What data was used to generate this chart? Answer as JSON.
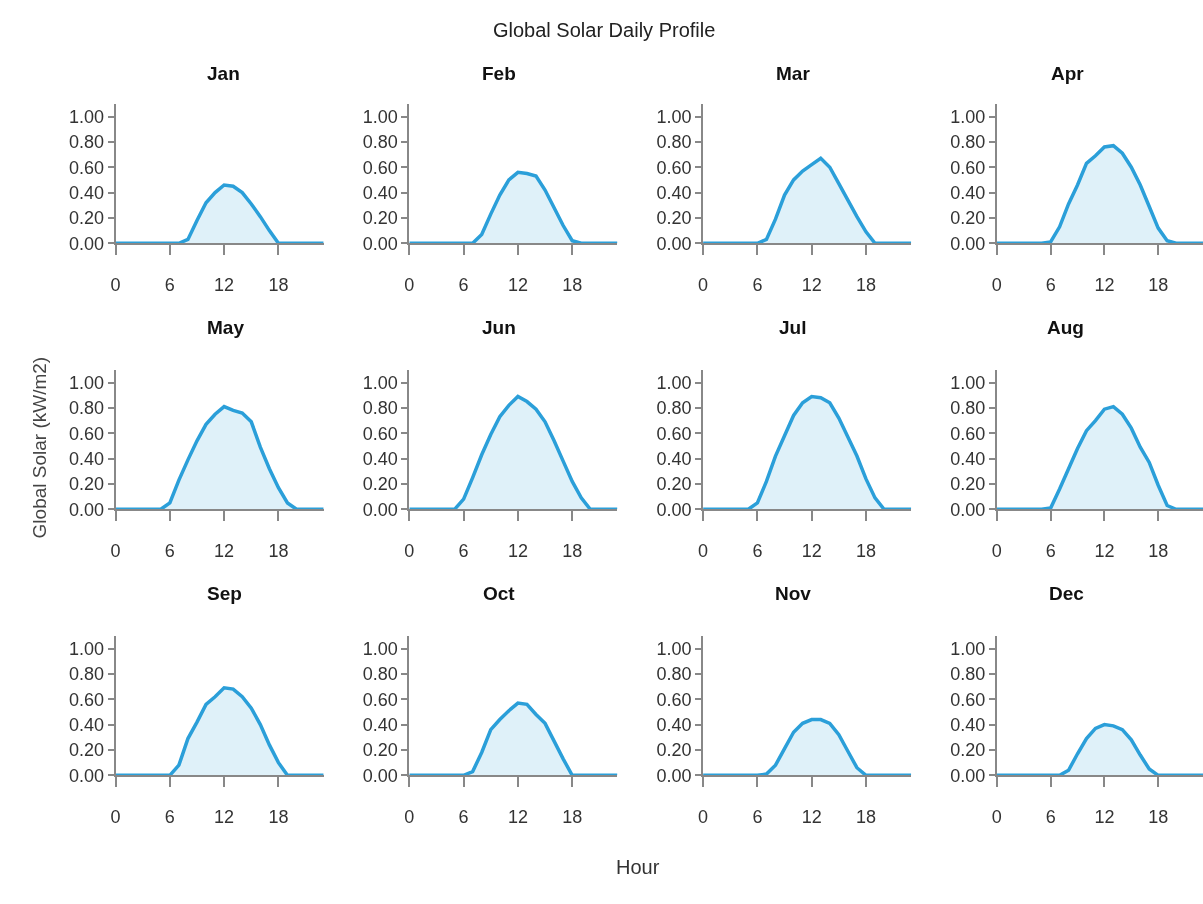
{
  "chart_data": [
    {
      "type": "area",
      "title": "Jan",
      "annotations": [
        "Global Solar Daily Profile"
      ],
      "x": [
        0,
        1,
        2,
        3,
        4,
        5,
        6,
        7,
        8,
        9,
        10,
        11,
        12,
        13,
        14,
        15,
        16,
        17,
        18,
        19,
        20,
        21,
        22,
        23
      ],
      "series": [
        {
          "color": "#2b9fd9",
          "values": [
            0,
            0,
            0,
            0,
            0,
            0,
            0,
            0,
            0.03,
            0.18,
            0.32,
            0.4,
            0.46,
            0.45,
            0.4,
            0.31,
            0.21,
            0.1,
            0,
            0,
            0,
            0,
            0,
            0
          ]
        }
      ],
      "xlim": [
        0,
        23
      ],
      "ylim": [
        0,
        1.1
      ],
      "xticks": [
        0,
        6,
        12,
        18
      ],
      "yticks": [
        {
          "value": 0,
          "label": "0.00"
        },
        {
          "value": 0.2,
          "label": "0.20"
        },
        {
          "value": 0.4,
          "label": "0.40"
        },
        {
          "value": 0.6,
          "label": "0.60"
        },
        {
          "value": 0.8,
          "label": "0.80"
        },
        {
          "value": 1,
          "label": "1.00"
        }
      ]
    },
    {
      "type": "area",
      "title": "Feb",
      "x": [
        0,
        1,
        2,
        3,
        4,
        5,
        6,
        7,
        8,
        9,
        10,
        11,
        12,
        13,
        14,
        15,
        16,
        17,
        18,
        19,
        20,
        21,
        22,
        23
      ],
      "series": [
        {
          "color": "#2b9fd9",
          "values": [
            0,
            0,
            0,
            0,
            0,
            0,
            0,
            0,
            0.07,
            0.23,
            0.38,
            0.5,
            0.56,
            0.55,
            0.53,
            0.42,
            0.28,
            0.14,
            0.02,
            0,
            0,
            0,
            0,
            0
          ]
        }
      ],
      "xlim": [
        0,
        23
      ],
      "ylim": [
        0,
        1.1
      ],
      "xticks": [
        0,
        6,
        12,
        18
      ],
      "yticks": [
        {
          "value": 0,
          "label": "0.00"
        },
        {
          "value": 0.2,
          "label": "0.20"
        },
        {
          "value": 0.4,
          "label": "0.40"
        },
        {
          "value": 0.6,
          "label": "0.60"
        },
        {
          "value": 0.8,
          "label": "0.80"
        },
        {
          "value": 1,
          "label": "1.00"
        }
      ]
    },
    {
      "type": "area",
      "title": "Mar",
      "x": [
        0,
        1,
        2,
        3,
        4,
        5,
        6,
        7,
        8,
        9,
        10,
        11,
        12,
        13,
        14,
        15,
        16,
        17,
        18,
        19,
        20,
        21,
        22,
        23
      ],
      "series": [
        {
          "color": "#2b9fd9",
          "values": [
            0,
            0,
            0,
            0,
            0,
            0,
            0,
            0.03,
            0.19,
            0.38,
            0.5,
            0.57,
            0.62,
            0.67,
            0.6,
            0.47,
            0.34,
            0.21,
            0.09,
            0,
            0,
            0,
            0,
            0
          ]
        }
      ],
      "xlim": [
        0,
        23
      ],
      "ylim": [
        0,
        1.1
      ],
      "xticks": [
        0,
        6,
        12,
        18
      ],
      "yticks": [
        {
          "value": 0,
          "label": "0.00"
        },
        {
          "value": 0.2,
          "label": "0.20"
        },
        {
          "value": 0.4,
          "label": "0.40"
        },
        {
          "value": 0.6,
          "label": "0.60"
        },
        {
          "value": 0.8,
          "label": "0.80"
        },
        {
          "value": 1,
          "label": "1.00"
        }
      ]
    },
    {
      "type": "area",
      "title": "Apr",
      "x": [
        0,
        1,
        2,
        3,
        4,
        5,
        6,
        7,
        8,
        9,
        10,
        11,
        12,
        13,
        14,
        15,
        16,
        17,
        18,
        19,
        20,
        21,
        22,
        23
      ],
      "series": [
        {
          "color": "#2b9fd9",
          "values": [
            0,
            0,
            0,
            0,
            0,
            0,
            0.01,
            0.13,
            0.31,
            0.46,
            0.63,
            0.69,
            0.76,
            0.77,
            0.71,
            0.6,
            0.46,
            0.29,
            0.12,
            0.02,
            0,
            0,
            0,
            0
          ]
        }
      ],
      "xlim": [
        0,
        23
      ],
      "ylim": [
        0,
        1.1
      ],
      "xticks": [
        0,
        6,
        12,
        18
      ],
      "yticks": [
        {
          "value": 0,
          "label": "0.00"
        },
        {
          "value": 0.2,
          "label": "0.20"
        },
        {
          "value": 0.4,
          "label": "0.40"
        },
        {
          "value": 0.6,
          "label": "0.60"
        },
        {
          "value": 0.8,
          "label": "0.80"
        },
        {
          "value": 1,
          "label": "1.00"
        }
      ]
    },
    {
      "type": "area",
      "title": "May",
      "ylabel": "Global Solar (kW/m2)",
      "x": [
        0,
        1,
        2,
        3,
        4,
        5,
        6,
        7,
        8,
        9,
        10,
        11,
        12,
        13,
        14,
        15,
        16,
        17,
        18,
        19,
        20,
        21,
        22,
        23
      ],
      "series": [
        {
          "color": "#2b9fd9",
          "values": [
            0,
            0,
            0,
            0,
            0,
            0,
            0.05,
            0.23,
            0.39,
            0.54,
            0.67,
            0.75,
            0.81,
            0.78,
            0.76,
            0.69,
            0.49,
            0.32,
            0.17,
            0.05,
            0,
            0,
            0,
            0
          ]
        }
      ],
      "xlim": [
        0,
        23
      ],
      "ylim": [
        0,
        1.1
      ],
      "xticks": [
        0,
        6,
        12,
        18
      ],
      "yticks": [
        {
          "value": 0,
          "label": "0.00"
        },
        {
          "value": 0.2,
          "label": "0.20"
        },
        {
          "value": 0.4,
          "label": "0.40"
        },
        {
          "value": 0.6,
          "label": "0.60"
        },
        {
          "value": 0.8,
          "label": "0.80"
        },
        {
          "value": 1,
          "label": "1.00"
        }
      ]
    },
    {
      "type": "area",
      "title": "Jun",
      "x": [
        0,
        1,
        2,
        3,
        4,
        5,
        6,
        7,
        8,
        9,
        10,
        11,
        12,
        13,
        14,
        15,
        16,
        17,
        18,
        19,
        20,
        21,
        22,
        23
      ],
      "series": [
        {
          "color": "#2b9fd9",
          "values": [
            0,
            0,
            0,
            0,
            0,
            0,
            0.08,
            0.25,
            0.43,
            0.59,
            0.73,
            0.82,
            0.89,
            0.85,
            0.79,
            0.69,
            0.54,
            0.38,
            0.22,
            0.09,
            0,
            0,
            0,
            0
          ]
        }
      ],
      "xlim": [
        0,
        23
      ],
      "ylim": [
        0,
        1.1
      ],
      "xticks": [
        0,
        6,
        12,
        18
      ],
      "yticks": [
        {
          "value": 0,
          "label": "0.00"
        },
        {
          "value": 0.2,
          "label": "0.20"
        },
        {
          "value": 0.4,
          "label": "0.40"
        },
        {
          "value": 0.6,
          "label": "0.60"
        },
        {
          "value": 0.8,
          "label": "0.80"
        },
        {
          "value": 1,
          "label": "1.00"
        }
      ]
    },
    {
      "type": "area",
      "title": "Jul",
      "x": [
        0,
        1,
        2,
        3,
        4,
        5,
        6,
        7,
        8,
        9,
        10,
        11,
        12,
        13,
        14,
        15,
        16,
        17,
        18,
        19,
        20,
        21,
        22,
        23
      ],
      "series": [
        {
          "color": "#2b9fd9",
          "values": [
            0,
            0,
            0,
            0,
            0,
            0,
            0.05,
            0.22,
            0.42,
            0.58,
            0.74,
            0.84,
            0.89,
            0.88,
            0.84,
            0.72,
            0.57,
            0.42,
            0.24,
            0.09,
            0,
            0,
            0,
            0
          ]
        }
      ],
      "xlim": [
        0,
        23
      ],
      "ylim": [
        0,
        1.1
      ],
      "xticks": [
        0,
        6,
        12,
        18
      ],
      "yticks": [
        {
          "value": 0,
          "label": "0.00"
        },
        {
          "value": 0.2,
          "label": "0.20"
        },
        {
          "value": 0.4,
          "label": "0.40"
        },
        {
          "value": 0.6,
          "label": "0.60"
        },
        {
          "value": 0.8,
          "label": "0.80"
        },
        {
          "value": 1,
          "label": "1.00"
        }
      ]
    },
    {
      "type": "area",
      "title": "Aug",
      "x": [
        0,
        1,
        2,
        3,
        4,
        5,
        6,
        7,
        8,
        9,
        10,
        11,
        12,
        13,
        14,
        15,
        16,
        17,
        18,
        19,
        20,
        21,
        22,
        23
      ],
      "series": [
        {
          "color": "#2b9fd9",
          "values": [
            0,
            0,
            0,
            0,
            0,
            0,
            0.01,
            0.16,
            0.32,
            0.48,
            0.62,
            0.7,
            0.79,
            0.81,
            0.75,
            0.64,
            0.49,
            0.37,
            0.19,
            0.03,
            0,
            0,
            0,
            0
          ]
        }
      ],
      "xlim": [
        0,
        23
      ],
      "ylim": [
        0,
        1.1
      ],
      "xticks": [
        0,
        6,
        12,
        18
      ],
      "yticks": [
        {
          "value": 0,
          "label": "0.00"
        },
        {
          "value": 0.2,
          "label": "0.20"
        },
        {
          "value": 0.4,
          "label": "0.40"
        },
        {
          "value": 0.6,
          "label": "0.60"
        },
        {
          "value": 0.8,
          "label": "0.80"
        },
        {
          "value": 1,
          "label": "1.00"
        }
      ]
    },
    {
      "type": "area",
      "title": "Sep",
      "x": [
        0,
        1,
        2,
        3,
        4,
        5,
        6,
        7,
        8,
        9,
        10,
        11,
        12,
        13,
        14,
        15,
        16,
        17,
        18,
        19,
        20,
        21,
        22,
        23
      ],
      "series": [
        {
          "color": "#2b9fd9",
          "values": [
            0,
            0,
            0,
            0,
            0,
            0,
            0,
            0.08,
            0.29,
            0.42,
            0.56,
            0.62,
            0.69,
            0.68,
            0.62,
            0.53,
            0.4,
            0.24,
            0.1,
            0,
            0,
            0,
            0,
            0
          ]
        }
      ],
      "xlim": [
        0,
        23
      ],
      "ylim": [
        0,
        1.1
      ],
      "xticks": [
        0,
        6,
        12,
        18
      ],
      "yticks": [
        {
          "value": 0,
          "label": "0.00"
        },
        {
          "value": 0.2,
          "label": "0.20"
        },
        {
          "value": 0.4,
          "label": "0.40"
        },
        {
          "value": 0.6,
          "label": "0.60"
        },
        {
          "value": 0.8,
          "label": "0.80"
        },
        {
          "value": 1,
          "label": "1.00"
        }
      ]
    },
    {
      "type": "area",
      "title": "Oct",
      "xlabel": "Hour",
      "x": [
        0,
        1,
        2,
        3,
        4,
        5,
        6,
        7,
        8,
        9,
        10,
        11,
        12,
        13,
        14,
        15,
        16,
        17,
        18,
        19,
        20,
        21,
        22,
        23
      ],
      "series": [
        {
          "color": "#2b9fd9",
          "values": [
            0,
            0,
            0,
            0,
            0,
            0,
            0,
            0.03,
            0.18,
            0.36,
            0.44,
            0.51,
            0.57,
            0.56,
            0.48,
            0.41,
            0.27,
            0.13,
            0,
            0,
            0,
            0,
            0,
            0
          ]
        }
      ],
      "xlim": [
        0,
        23
      ],
      "ylim": [
        0,
        1.1
      ],
      "xticks": [
        0,
        6,
        12,
        18
      ],
      "yticks": [
        {
          "value": 0,
          "label": "0.00"
        },
        {
          "value": 0.2,
          "label": "0.20"
        },
        {
          "value": 0.4,
          "label": "0.40"
        },
        {
          "value": 0.6,
          "label": "0.60"
        },
        {
          "value": 0.8,
          "label": "0.80"
        },
        {
          "value": 1,
          "label": "1.00"
        }
      ]
    },
    {
      "type": "area",
      "title": "Nov",
      "x": [
        0,
        1,
        2,
        3,
        4,
        5,
        6,
        7,
        8,
        9,
        10,
        11,
        12,
        13,
        14,
        15,
        16,
        17,
        18,
        19,
        20,
        21,
        22,
        23
      ],
      "series": [
        {
          "color": "#2b9fd9",
          "values": [
            0,
            0,
            0,
            0,
            0,
            0,
            0,
            0.01,
            0.08,
            0.21,
            0.34,
            0.41,
            0.44,
            0.44,
            0.41,
            0.32,
            0.19,
            0.06,
            0,
            0,
            0,
            0,
            0,
            0
          ]
        }
      ],
      "xlim": [
        0,
        23
      ],
      "ylim": [
        0,
        1.1
      ],
      "xticks": [
        0,
        6,
        12,
        18
      ],
      "yticks": [
        {
          "value": 0,
          "label": "0.00"
        },
        {
          "value": 0.2,
          "label": "0.20"
        },
        {
          "value": 0.4,
          "label": "0.40"
        },
        {
          "value": 0.6,
          "label": "0.60"
        },
        {
          "value": 0.8,
          "label": "0.80"
        },
        {
          "value": 1,
          "label": "1.00"
        }
      ]
    },
    {
      "type": "area",
      "title": "Dec",
      "x": [
        0,
        1,
        2,
        3,
        4,
        5,
        6,
        7,
        8,
        9,
        10,
        11,
        12,
        13,
        14,
        15,
        16,
        17,
        18,
        19,
        20,
        21,
        22,
        23
      ],
      "series": [
        {
          "color": "#2b9fd9",
          "values": [
            0,
            0,
            0,
            0,
            0,
            0,
            0,
            0,
            0.04,
            0.17,
            0.29,
            0.37,
            0.4,
            0.39,
            0.36,
            0.28,
            0.16,
            0.05,
            0,
            0,
            0,
            0,
            0,
            0
          ]
        }
      ],
      "xlim": [
        0,
        23
      ],
      "ylim": [
        0,
        1.1
      ],
      "xticks": [
        0,
        6,
        12,
        18
      ],
      "yticks": [
        {
          "value": 0,
          "label": "0.00"
        },
        {
          "value": 0.2,
          "label": "0.20"
        },
        {
          "value": 0.4,
          "label": "0.40"
        },
        {
          "value": 0.6,
          "label": "0.60"
        },
        {
          "value": 0.8,
          "label": "0.80"
        },
        {
          "value": 1,
          "label": "1.00"
        }
      ]
    }
  ]
}
